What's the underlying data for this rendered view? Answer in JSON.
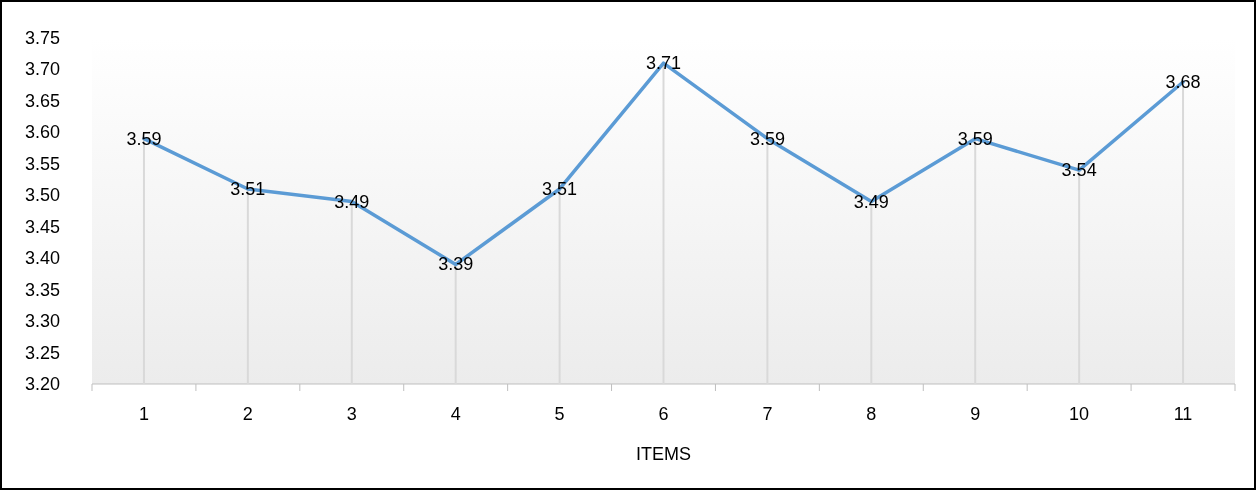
{
  "chart_data": {
    "type": "line",
    "xlabel": "ITEMS",
    "categories": [
      "1",
      "2",
      "3",
      "4",
      "5",
      "6",
      "7",
      "8",
      "9",
      "10",
      "11"
    ],
    "series": [
      {
        "color": "#5b9bd5",
        "values": [
          3.59,
          3.51,
          3.49,
          3.39,
          3.51,
          3.71,
          3.59,
          3.49,
          3.59,
          3.54,
          3.68
        ]
      }
    ],
    "ylim": [
      3.2,
      3.75
    ],
    "yticks": [
      {
        "value": 3.2,
        "label": "3.20"
      },
      {
        "value": 3.25,
        "label": "3.25"
      },
      {
        "value": 3.3,
        "label": "3.30"
      },
      {
        "value": 3.35,
        "label": "3.35"
      },
      {
        "value": 3.4,
        "label": "3.40"
      },
      {
        "value": 3.45,
        "label": "3.45"
      },
      {
        "value": 3.5,
        "label": "3.50"
      },
      {
        "value": 3.55,
        "label": "3.55"
      },
      {
        "value": 3.6,
        "label": "3.60"
      },
      {
        "value": 3.65,
        "label": "3.65"
      },
      {
        "value": 3.7,
        "label": "3.70"
      },
      {
        "value": 3.75,
        "label": "3.75"
      }
    ],
    "data_labels": true,
    "grid": "x",
    "marker": "none",
    "line_style": "solid"
  }
}
